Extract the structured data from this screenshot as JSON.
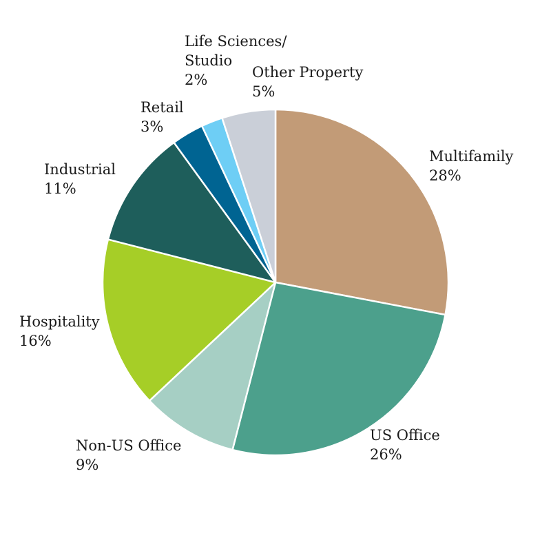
{
  "chart_data": {
    "type": "pie",
    "title": "",
    "start_angle_deg": 0,
    "direction": "clockwise",
    "slices": [
      {
        "label": "Multifamily",
        "value": 28,
        "value_label": "28%",
        "color": "#C29B77"
      },
      {
        "label": "US Office",
        "value": 26,
        "value_label": "26%",
        "color": "#4CA08C"
      },
      {
        "label": "Non-US Office",
        "value": 9,
        "value_label": "9%",
        "color": "#A6CFC4"
      },
      {
        "label": "Hospitality",
        "value": 16,
        "value_label": "16%",
        "color": "#A6CE27"
      },
      {
        "label": "Industrial",
        "value": 11,
        "value_label": "11%",
        "color": "#1E5E5B"
      },
      {
        "label": "Retail",
        "value": 3,
        "value_label": "3%",
        "color": "#006492"
      },
      {
        "label": "Life Sciences/ Studio",
        "value": 2,
        "value_label": "2%",
        "color": "#6ECEF5"
      },
      {
        "label": "Other Property",
        "value": 5,
        "value_label": "5%",
        "color": "#CACFD8"
      }
    ]
  }
}
